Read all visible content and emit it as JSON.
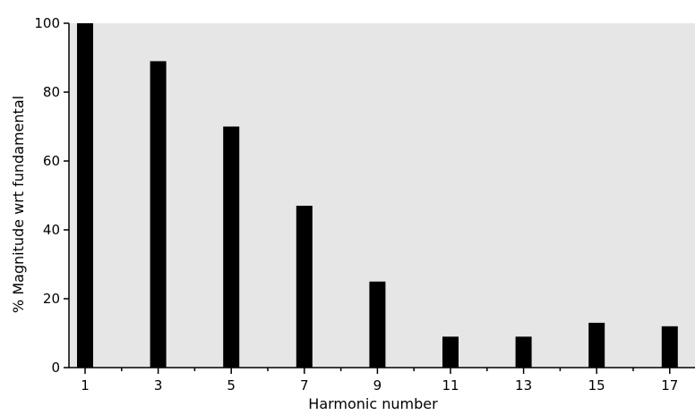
{
  "chart_data": {
    "type": "bar",
    "title": "",
    "xlabel": "Harmonic number",
    "ylabel": "% Magnitude wrt fundamental",
    "categories": [
      "1",
      "3",
      "5",
      "7",
      "9",
      "11",
      "13",
      "15",
      "17"
    ],
    "values": [
      100,
      89,
      70,
      47,
      25,
      9,
      9,
      13,
      12
    ],
    "ylim": [
      0,
      100
    ],
    "yticks": [
      0,
      20,
      40,
      60,
      80,
      100
    ],
    "grid": false,
    "legend": "none",
    "colors": {
      "bar": "#000000",
      "plot_background": "#e6e6e6",
      "axis": "#000000"
    }
  }
}
